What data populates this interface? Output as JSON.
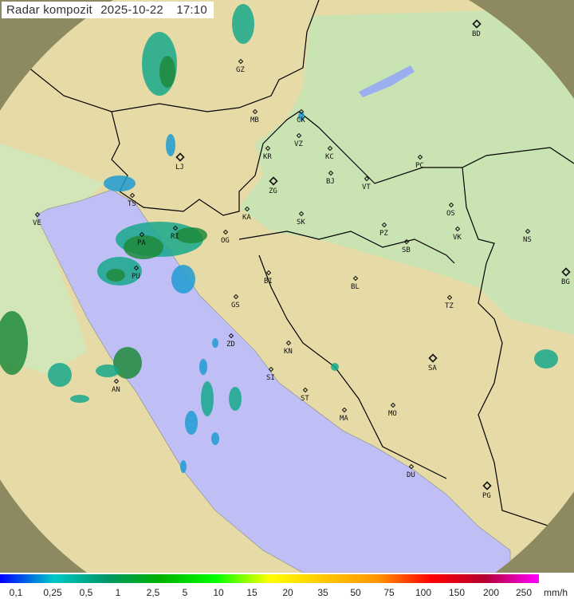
{
  "header": {
    "title": "Radar kompozit",
    "date": "2025-10-22",
    "time": "17:10"
  },
  "legend": {
    "unit": "mm/h",
    "ticks": [
      "0,1",
      "0,25",
      "0,5",
      "1",
      "2,5",
      "5",
      "10",
      "15",
      "20",
      "35",
      "50",
      "75",
      "100",
      "150",
      "200",
      "250"
    ],
    "colors": [
      "#0000ff",
      "#00c8c8",
      "#009664",
      "#00b400",
      "#00ff00",
      "#ffff00",
      "#ffc800",
      "#ff9600",
      "#ff0000",
      "#b40032",
      "#ff00ff"
    ]
  },
  "map": {
    "colors": {
      "sea": "#bfbff5",
      "terrain": "#e6dba6",
      "plains": "#c9e3b2",
      "out_of_range": "#8d8a62",
      "border": "#000000",
      "radar_light": "#1e9bd2",
      "radar_mid": "#18a88c",
      "radar_heavy": "#1f8a3c"
    },
    "cities": [
      {
        "code": "GZ"
      },
      {
        "code": "BD",
        "capital": true
      },
      {
        "code": "MB"
      },
      {
        "code": "CK"
      },
      {
        "code": "VZ"
      },
      {
        "code": "KR"
      },
      {
        "code": "KC"
      },
      {
        "code": "PC"
      },
      {
        "code": "LJ",
        "capital": true
      },
      {
        "code": "BJ"
      },
      {
        "code": "VT"
      },
      {
        "code": "ZG",
        "capital": true
      },
      {
        "code": "TS"
      },
      {
        "code": "VE"
      },
      {
        "code": "OS"
      },
      {
        "code": "KA"
      },
      {
        "code": "SK"
      },
      {
        "code": "RI"
      },
      {
        "code": "PZ"
      },
      {
        "code": "SB"
      },
      {
        "code": "VK"
      },
      {
        "code": "NS"
      },
      {
        "code": "PA"
      },
      {
        "code": "OG"
      },
      {
        "code": "PU"
      },
      {
        "code": "BI"
      },
      {
        "code": "BL"
      },
      {
        "code": "BG",
        "capital": true
      },
      {
        "code": "GS"
      },
      {
        "code": "TZ"
      },
      {
        "code": "ZD"
      },
      {
        "code": "KN"
      },
      {
        "code": "SA",
        "capital": true
      },
      {
        "code": "SI"
      },
      {
        "code": "AN"
      },
      {
        "code": "ST"
      },
      {
        "code": "MA"
      },
      {
        "code": "MO"
      },
      {
        "code": "DU"
      },
      {
        "code": "PG",
        "capital": true
      }
    ]
  }
}
